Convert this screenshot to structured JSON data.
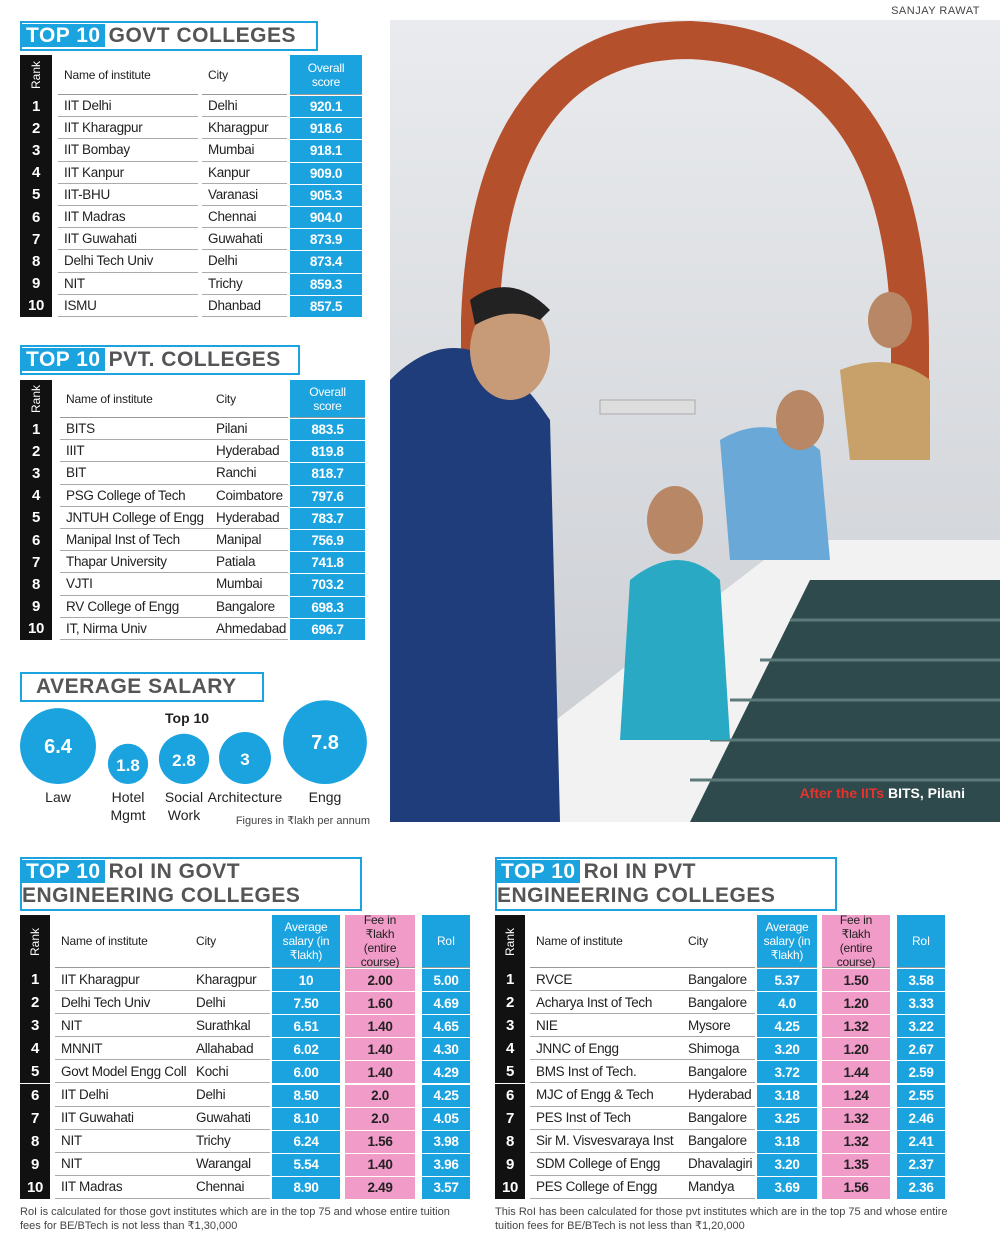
{
  "credit": "SANJAY RAWAT",
  "govt_table": {
    "title_highlight": "TOP 10",
    "title": "GOVT COLLEGES",
    "columns": [
      "Rank",
      "Name of institute",
      "City",
      "Overall score"
    ],
    "rows": [
      [
        "1",
        "IIT Delhi",
        "Delhi",
        "920.1"
      ],
      [
        "2",
        "IIT Kharagpur",
        "Kharagpur",
        "918.6"
      ],
      [
        "3",
        "IIT Bombay",
        "Mumbai",
        "918.1"
      ],
      [
        "4",
        "IIT Kanpur",
        "Kanpur",
        "909.0"
      ],
      [
        "5",
        "IIT-BHU",
        "Varanasi",
        "905.3"
      ],
      [
        "6",
        "IIT Madras",
        "Chennai",
        "904.0"
      ],
      [
        "7",
        "IIT Guwahati",
        "Guwahati",
        "873.9"
      ],
      [
        "8",
        "Delhi Tech Univ",
        "Delhi",
        "873.4"
      ],
      [
        "9",
        "NIT",
        "Trichy",
        "859.3"
      ],
      [
        "10",
        "ISMU",
        "Dhanbad",
        "857.5"
      ]
    ]
  },
  "pvt_table": {
    "title_highlight": "TOP 10",
    "title": "PVT. COLLEGES",
    "columns": [
      "Rank",
      "Name of institute",
      "City",
      "Overall score"
    ],
    "rows": [
      [
        "1",
        "BITS",
        "Pilani",
        "883.5"
      ],
      [
        "2",
        "IIIT",
        "Hyderabad",
        "819.8"
      ],
      [
        "3",
        "BIT",
        "Ranchi",
        "818.7"
      ],
      [
        "4",
        "PSG College of Tech",
        "Coimbatore",
        "797.6"
      ],
      [
        "5",
        "JNTUH College of Engg",
        "Hyderabad",
        "783.7"
      ],
      [
        "6",
        "Manipal Inst of Tech",
        "Manipal",
        "756.9"
      ],
      [
        "7",
        "Thapar University",
        "Patiala",
        "741.8"
      ],
      [
        "8",
        "VJTI",
        "Mumbai",
        "703.2"
      ],
      [
        "9",
        "RV College of Engg",
        "Bangalore",
        "698.3"
      ],
      [
        "10",
        "IT, Nirma Univ",
        "Ahmedabad",
        "696.7"
      ]
    ]
  },
  "average_salary": {
    "title": "AVERAGE SALARY",
    "note": "Top 10",
    "categories": [
      "Law",
      "Hotel Mgmt",
      "Social Work",
      "Architecture",
      "Engg"
    ],
    "values": [
      6.4,
      1.8,
      2.8,
      3,
      7.8
    ],
    "footnote": "Figures in ₹lakh per annum"
  },
  "photo_caption": {
    "highlight": "After the IITs",
    "text": "BITS, Pilani"
  },
  "govt_roi_table": {
    "title_highlight": "TOP 10",
    "title": "RoI IN GOVT ENGINEERING COLLEGES",
    "columns": [
      "Rank",
      "Name of institute",
      "City",
      "Average salary (in ₹lakh)",
      "Fee in ₹lakh (entire course)",
      "RoI"
    ],
    "rows": [
      [
        "1",
        "IIT Kharagpur",
        "Kharagpur",
        "10",
        "2.00",
        "5.00"
      ],
      [
        "2",
        "Delhi Tech Univ",
        "Delhi",
        "7.50",
        "1.60",
        "4.69"
      ],
      [
        "3",
        "NIT",
        "Surathkal",
        "6.51",
        "1.40",
        "4.65"
      ],
      [
        "4",
        "MNNIT",
        "Allahabad",
        "6.02",
        "1.40",
        "4.30"
      ],
      [
        "5",
        "Govt Model Engg Coll",
        "Kochi",
        "6.00",
        "1.40",
        "4.29"
      ],
      [
        "6",
        "IIT Delhi",
        "Delhi",
        "8.50",
        "2.0",
        "4.25"
      ],
      [
        "7",
        "IIT Guwahati",
        "Guwahati",
        "8.10",
        "2.0",
        "4.05"
      ],
      [
        "8",
        "NIT",
        "Trichy",
        "6.24",
        "1.56",
        "3.98"
      ],
      [
        "9",
        "NIT",
        "Warangal",
        "5.54",
        "1.40",
        "3.96"
      ],
      [
        "10",
        "IIT Madras",
        "Chennai",
        "8.90",
        "2.49",
        "3.57"
      ]
    ],
    "footnote": "RoI is calculated for those govt institutes which are in the top 75 and whose entire tuition fees for BE/BTech is not less than ₹1,30,000"
  },
  "pvt_roi_table": {
    "title_highlight": "TOP 10",
    "title": "RoI IN PVT ENGINEERING COLLEGES",
    "columns": [
      "Rank",
      "Name of institute",
      "City",
      "Average salary (in ₹lakh)",
      "Fee in ₹lakh (entire course)",
      "RoI"
    ],
    "rows": [
      [
        "1",
        "RVCE",
        "Bangalore",
        "5.37",
        "1.50",
        "3.58"
      ],
      [
        "2",
        "Acharya Inst of Tech",
        "Bangalore",
        "4.0",
        "1.20",
        "3.33"
      ],
      [
        "3",
        "NIE",
        "Mysore",
        "4.25",
        "1.32",
        "3.22"
      ],
      [
        "4",
        "JNNC of Engg",
        "Shimoga",
        "3.20",
        "1.20",
        "2.67"
      ],
      [
        "5",
        "BMS Inst of Tech.",
        "Bangalore",
        "3.72",
        "1.44",
        "2.59"
      ],
      [
        "6",
        "MJC of Engg & Tech",
        "Hyderabad",
        "3.18",
        "1.24",
        "2.55"
      ],
      [
        "7",
        "PES Inst of Tech",
        "Bangalore",
        "3.25",
        "1.32",
        "2.46"
      ],
      [
        "8",
        "Sir M. Visvesvaraya Inst",
        "Bangalore",
        "3.18",
        "1.32",
        "2.41"
      ],
      [
        "9",
        "SDM College of Engg",
        "Dhavalagiri",
        "3.20",
        "1.35",
        "2.37"
      ],
      [
        "10",
        "PES College of Engg",
        "Mandya",
        "3.69",
        "1.56",
        "2.36"
      ]
    ],
    "footnote": "This RoI has been calculated for those pvt institutes which are in the top 75 and whose entire tuition fees for BE/BTech is not less than ₹1,20,000"
  }
}
